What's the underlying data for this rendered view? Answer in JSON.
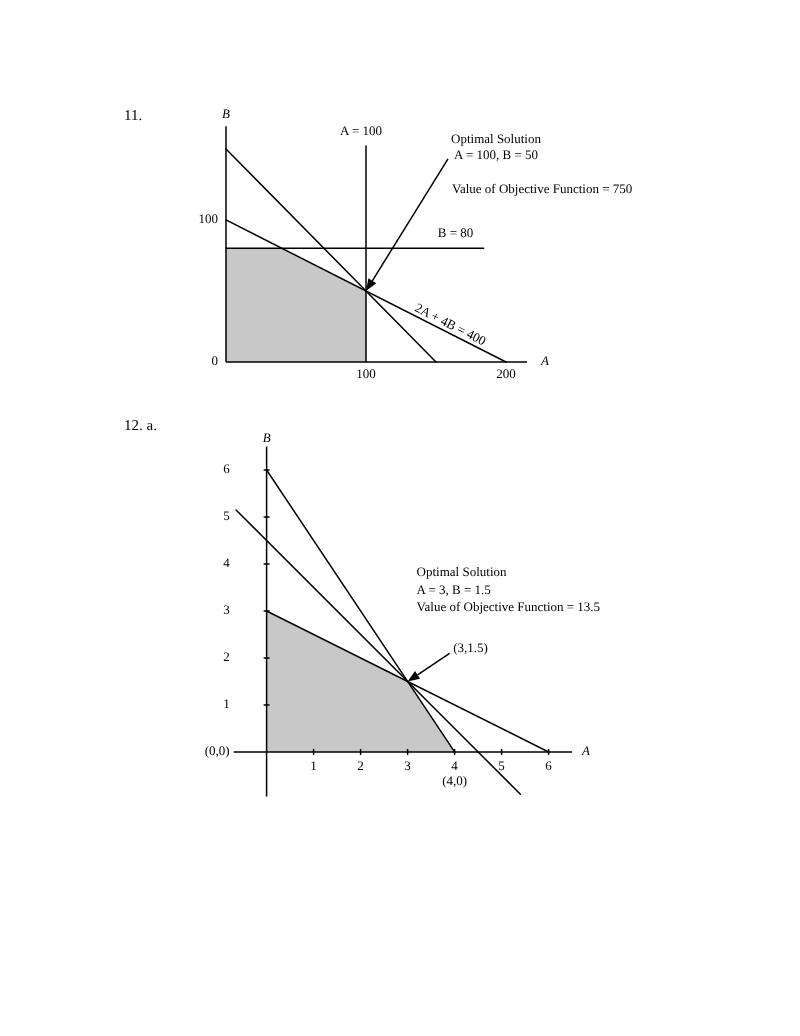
{
  "chart_data": [
    {
      "type": "line",
      "title": "11.",
      "xlabel": "A",
      "ylabel": "B",
      "xlim": [
        0,
        215
      ],
      "ylim": [
        0,
        166
      ],
      "xticks": [
        100,
        200
      ],
      "yticks": [
        0,
        100
      ],
      "series": [
        {
          "name": "A = 100",
          "color": "#000000",
          "x": [
            100,
            100
          ],
          "values": [
            0,
            152
          ]
        },
        {
          "name": "B = 80",
          "color": "#000000",
          "x": [
            0,
            184
          ],
          "values": [
            80,
            80
          ]
        },
        {
          "name": "2A + 4B = 400",
          "color": "#000000",
          "x": [
            0,
            200
          ],
          "values": [
            100,
            0
          ]
        },
        {
          "color": "#000000",
          "x": [
            0,
            150
          ],
          "values": [
            150,
            0
          ]
        },
        {
          "type": "area",
          "color": "#c8c8c8",
          "x": [
            0,
            40,
            100,
            100
          ],
          "values": [
            80,
            80,
            50,
            0
          ]
        }
      ],
      "annotations": [
        {
          "text": "Optimal Solution",
          "x": 100,
          "y": 50
        },
        "A = 100, B = 50",
        "Value of Objective Function = 750"
      ],
      "grid": false,
      "legend": false,
      "marker": "none"
    },
    {
      "type": "line",
      "title": "12. a.",
      "xlabel": "A",
      "ylabel": "B",
      "xlim": [
        -0.7,
        6.5
      ],
      "ylim": [
        -0.95,
        6.5
      ],
      "xticks": [
        1,
        2,
        3,
        4,
        5,
        6
      ],
      "yticks": [
        {
          "value": 0,
          "label": "(0,0)"
        },
        1,
        2,
        3,
        4,
        5,
        6
      ],
      "series": [
        {
          "color": "#000000",
          "x": [
            0,
            4
          ],
          "values": [
            6,
            0
          ]
        },
        {
          "color": "#000000",
          "x": [
            -0.65,
            5.4
          ],
          "values": [
            5.15,
            -0.9
          ]
        },
        {
          "color": "#000000",
          "x": [
            0,
            6
          ],
          "values": [
            3,
            0
          ]
        },
        {
          "type": "area",
          "color": "#c8c8c8",
          "x": [
            0,
            3,
            4
          ],
          "values": [
            3,
            1.5,
            0
          ]
        }
      ],
      "annotations": [
        "Optimal Solution",
        "A = 3, B = 1.5",
        "Value of Objective Function = 13.5",
        {
          "text": "(3,1.5)",
          "x": 3,
          "y": 1.5
        },
        {
          "text": "(4,0)",
          "x": 4,
          "y": 0
        }
      ],
      "grid": false,
      "legend": false,
      "marker": "none"
    }
  ]
}
